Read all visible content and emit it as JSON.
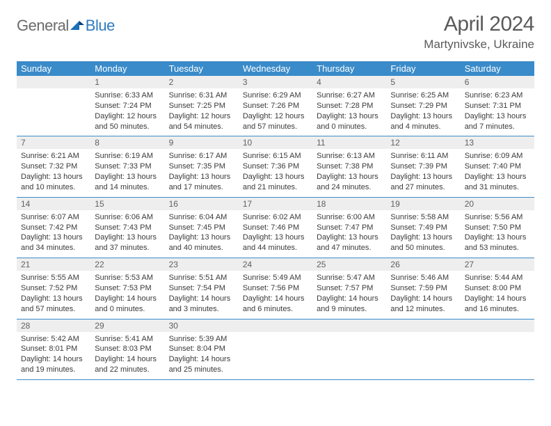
{
  "brand": {
    "word1": "General",
    "word2": "Blue"
  },
  "title": "April 2024",
  "location": "Martynivske, Ukraine",
  "colors": {
    "header_bg": "#3a8bc9",
    "header_text": "#ffffff",
    "daynum_bg": "#eeeeee",
    "border": "#3a8bc9",
    "logo_blue": "#2f7bbf"
  },
  "weekdays": [
    "Sunday",
    "Monday",
    "Tuesday",
    "Wednesday",
    "Thursday",
    "Friday",
    "Saturday"
  ],
  "weeks": [
    [
      {
        "n": "",
        "lines": [
          "",
          "",
          "",
          ""
        ]
      },
      {
        "n": "1",
        "lines": [
          "Sunrise: 6:33 AM",
          "Sunset: 7:24 PM",
          "Daylight: 12 hours",
          "and 50 minutes."
        ]
      },
      {
        "n": "2",
        "lines": [
          "Sunrise: 6:31 AM",
          "Sunset: 7:25 PM",
          "Daylight: 12 hours",
          "and 54 minutes."
        ]
      },
      {
        "n": "3",
        "lines": [
          "Sunrise: 6:29 AM",
          "Sunset: 7:26 PM",
          "Daylight: 12 hours",
          "and 57 minutes."
        ]
      },
      {
        "n": "4",
        "lines": [
          "Sunrise: 6:27 AM",
          "Sunset: 7:28 PM",
          "Daylight: 13 hours",
          "and 0 minutes."
        ]
      },
      {
        "n": "5",
        "lines": [
          "Sunrise: 6:25 AM",
          "Sunset: 7:29 PM",
          "Daylight: 13 hours",
          "and 4 minutes."
        ]
      },
      {
        "n": "6",
        "lines": [
          "Sunrise: 6:23 AM",
          "Sunset: 7:31 PM",
          "Daylight: 13 hours",
          "and 7 minutes."
        ]
      }
    ],
    [
      {
        "n": "7",
        "lines": [
          "Sunrise: 6:21 AM",
          "Sunset: 7:32 PM",
          "Daylight: 13 hours",
          "and 10 minutes."
        ]
      },
      {
        "n": "8",
        "lines": [
          "Sunrise: 6:19 AM",
          "Sunset: 7:33 PM",
          "Daylight: 13 hours",
          "and 14 minutes."
        ]
      },
      {
        "n": "9",
        "lines": [
          "Sunrise: 6:17 AM",
          "Sunset: 7:35 PM",
          "Daylight: 13 hours",
          "and 17 minutes."
        ]
      },
      {
        "n": "10",
        "lines": [
          "Sunrise: 6:15 AM",
          "Sunset: 7:36 PM",
          "Daylight: 13 hours",
          "and 21 minutes."
        ]
      },
      {
        "n": "11",
        "lines": [
          "Sunrise: 6:13 AM",
          "Sunset: 7:38 PM",
          "Daylight: 13 hours",
          "and 24 minutes."
        ]
      },
      {
        "n": "12",
        "lines": [
          "Sunrise: 6:11 AM",
          "Sunset: 7:39 PM",
          "Daylight: 13 hours",
          "and 27 minutes."
        ]
      },
      {
        "n": "13",
        "lines": [
          "Sunrise: 6:09 AM",
          "Sunset: 7:40 PM",
          "Daylight: 13 hours",
          "and 31 minutes."
        ]
      }
    ],
    [
      {
        "n": "14",
        "lines": [
          "Sunrise: 6:07 AM",
          "Sunset: 7:42 PM",
          "Daylight: 13 hours",
          "and 34 minutes."
        ]
      },
      {
        "n": "15",
        "lines": [
          "Sunrise: 6:06 AM",
          "Sunset: 7:43 PM",
          "Daylight: 13 hours",
          "and 37 minutes."
        ]
      },
      {
        "n": "16",
        "lines": [
          "Sunrise: 6:04 AM",
          "Sunset: 7:45 PM",
          "Daylight: 13 hours",
          "and 40 minutes."
        ]
      },
      {
        "n": "17",
        "lines": [
          "Sunrise: 6:02 AM",
          "Sunset: 7:46 PM",
          "Daylight: 13 hours",
          "and 44 minutes."
        ]
      },
      {
        "n": "18",
        "lines": [
          "Sunrise: 6:00 AM",
          "Sunset: 7:47 PM",
          "Daylight: 13 hours",
          "and 47 minutes."
        ]
      },
      {
        "n": "19",
        "lines": [
          "Sunrise: 5:58 AM",
          "Sunset: 7:49 PM",
          "Daylight: 13 hours",
          "and 50 minutes."
        ]
      },
      {
        "n": "20",
        "lines": [
          "Sunrise: 5:56 AM",
          "Sunset: 7:50 PM",
          "Daylight: 13 hours",
          "and 53 minutes."
        ]
      }
    ],
    [
      {
        "n": "21",
        "lines": [
          "Sunrise: 5:55 AM",
          "Sunset: 7:52 PM",
          "Daylight: 13 hours",
          "and 57 minutes."
        ]
      },
      {
        "n": "22",
        "lines": [
          "Sunrise: 5:53 AM",
          "Sunset: 7:53 PM",
          "Daylight: 14 hours",
          "and 0 minutes."
        ]
      },
      {
        "n": "23",
        "lines": [
          "Sunrise: 5:51 AM",
          "Sunset: 7:54 PM",
          "Daylight: 14 hours",
          "and 3 minutes."
        ]
      },
      {
        "n": "24",
        "lines": [
          "Sunrise: 5:49 AM",
          "Sunset: 7:56 PM",
          "Daylight: 14 hours",
          "and 6 minutes."
        ]
      },
      {
        "n": "25",
        "lines": [
          "Sunrise: 5:47 AM",
          "Sunset: 7:57 PM",
          "Daylight: 14 hours",
          "and 9 minutes."
        ]
      },
      {
        "n": "26",
        "lines": [
          "Sunrise: 5:46 AM",
          "Sunset: 7:59 PM",
          "Daylight: 14 hours",
          "and 12 minutes."
        ]
      },
      {
        "n": "27",
        "lines": [
          "Sunrise: 5:44 AM",
          "Sunset: 8:00 PM",
          "Daylight: 14 hours",
          "and 16 minutes."
        ]
      }
    ],
    [
      {
        "n": "28",
        "lines": [
          "Sunrise: 5:42 AM",
          "Sunset: 8:01 PM",
          "Daylight: 14 hours",
          "and 19 minutes."
        ]
      },
      {
        "n": "29",
        "lines": [
          "Sunrise: 5:41 AM",
          "Sunset: 8:03 PM",
          "Daylight: 14 hours",
          "and 22 minutes."
        ]
      },
      {
        "n": "30",
        "lines": [
          "Sunrise: 5:39 AM",
          "Sunset: 8:04 PM",
          "Daylight: 14 hours",
          "and 25 minutes."
        ]
      },
      {
        "n": "",
        "lines": [
          "",
          "",
          "",
          ""
        ],
        "trailing": true
      },
      {
        "n": "",
        "lines": [
          "",
          "",
          "",
          ""
        ],
        "trailing": true
      },
      {
        "n": "",
        "lines": [
          "",
          "",
          "",
          ""
        ],
        "trailing": true
      },
      {
        "n": "",
        "lines": [
          "",
          "",
          "",
          ""
        ],
        "trailing": true
      }
    ]
  ]
}
